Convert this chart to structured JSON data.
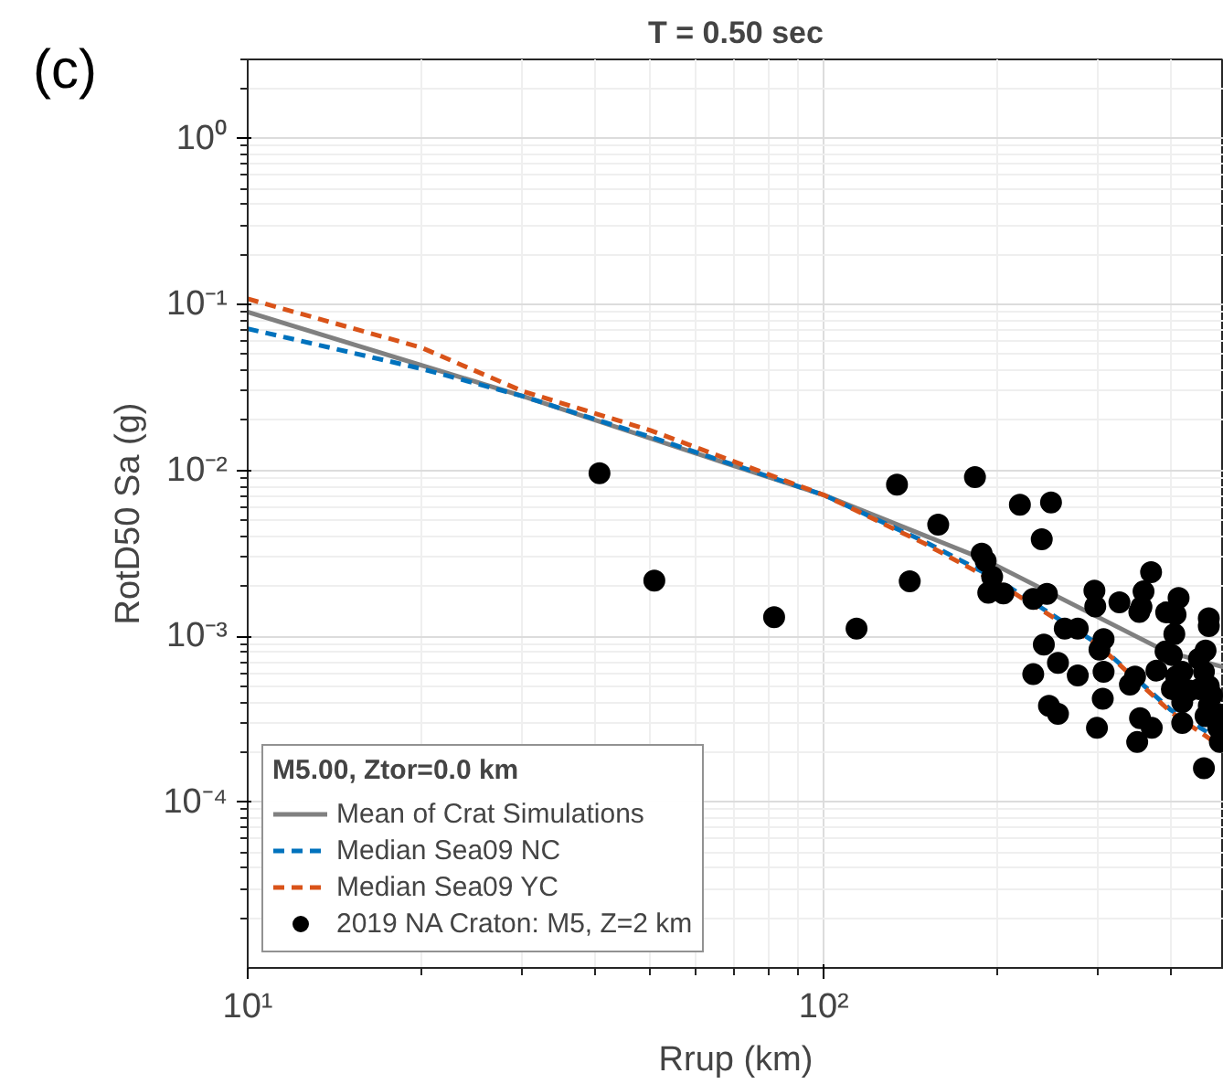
{
  "chart_data": {
    "type": "line",
    "title": "T = 0.50 sec",
    "xlabel": "Rrup (km)",
    "ylabel": "RotD50 Sa (g)",
    "legend_title": "M5.00, Ztor=0.0 km",
    "annotations": [
      "(c)"
    ],
    "log": "xy",
    "grid": true,
    "legend": "bottom left",
    "xlim": [
      10,
      495
    ],
    "ylim": [
      1e-05,
      3
    ],
    "xticks": [
      {
        "value": 10,
        "label": "10¹"
      },
      {
        "value": 100,
        "label": "10²"
      }
    ],
    "yticks": [
      {
        "value": 0.0001,
        "label": "10⁻⁴"
      },
      {
        "value": 0.001,
        "label": "10⁻³"
      },
      {
        "value": 0.01,
        "label": "10⁻²"
      },
      {
        "value": 0.1,
        "label": "10⁻¹"
      },
      {
        "value": 1,
        "label": "10⁰"
      }
    ],
    "series": [
      {
        "name": "Mean of Crat Simulations",
        "line_style": "solid",
        "color": "#808080",
        "x": [
          10,
          30,
          70,
          100,
          190,
          392,
          495
        ],
        "values": [
          0.09,
          0.028,
          0.0106,
          0.0071,
          0.0029,
          0.00081,
          0.00065
        ]
      },
      {
        "name": "Median Sea09 NC",
        "line_style": "dashed",
        "color": "#0072bd",
        "x": [
          10,
          20,
          30,
          50,
          100,
          150,
          200,
          300,
          400,
          495
        ],
        "values": [
          0.0714,
          0.041,
          0.028,
          0.0159,
          0.0071,
          0.0037,
          0.0022,
          0.00089,
          0.00036,
          0.00023
        ]
      },
      {
        "name": "Median Sea09 YC",
        "line_style": "dashed",
        "color": "#d95319",
        "x": [
          10,
          20,
          30,
          50,
          100,
          150,
          200,
          300,
          400,
          495
        ],
        "values": [
          0.108,
          0.055,
          0.03,
          0.0174,
          0.0071,
          0.0036,
          0.0021,
          0.00088,
          0.00035,
          0.00021
        ]
      },
      {
        "name": "2019 NA Craton: M5, Z=2 km",
        "type": "scatter",
        "marker": "circle",
        "color": "#000000",
        "x": [
          40.8,
          50.8,
          82,
          114,
          134,
          141,
          158,
          183,
          188,
          191,
          196,
          193,
          205,
          219,
          248,
          239,
          231,
          244,
          241,
          231,
          255,
          246,
          255,
          262,
          276,
          296,
          276,
          306,
          301,
          306,
          305,
          298,
          295,
          326,
          353,
          356,
          359,
          370,
          340,
          347,
          378,
          354,
          350,
          371,
          393,
          408,
          413,
          406,
          392,
          402,
          409,
          419,
          402,
          419,
          419,
          431,
          448,
          466,
          466,
          460,
          448,
          457,
          466,
          472,
          466,
          460,
          482,
          484,
          487,
          457
        ],
        "values": [
          0.0096,
          0.00216,
          0.0013,
          0.00111,
          0.0082,
          0.00214,
          0.0047,
          0.0091,
          0.00314,
          0.00284,
          0.00228,
          0.00183,
          0.00181,
          0.0062,
          0.0064,
          0.00384,
          0.00168,
          0.0018,
          0.00089,
          0.00059,
          0.00069,
          0.00038,
          0.00034,
          0.00111,
          0.00111,
          0.00151,
          0.00058,
          0.00096,
          0.00083,
          0.00061,
          0.00042,
          0.00028,
          0.00188,
          0.0016,
          0.0014,
          0.0015,
          0.00186,
          0.00243,
          0.00051,
          0.00057,
          0.00062,
          0.00032,
          0.00023,
          0.00028,
          0.00139,
          0.00135,
          0.0017,
          0.00103,
          0.00081,
          0.00077,
          0.00057,
          0.00061,
          0.00048,
          0.0004,
          0.0003,
          0.00047,
          0.00048,
          0.00128,
          0.00115,
          0.00082,
          0.00073,
          0.00061,
          0.0005,
          0.00044,
          0.00038,
          0.00033,
          0.00034,
          0.00028,
          0.00023,
          0.00016
        ]
      }
    ]
  }
}
